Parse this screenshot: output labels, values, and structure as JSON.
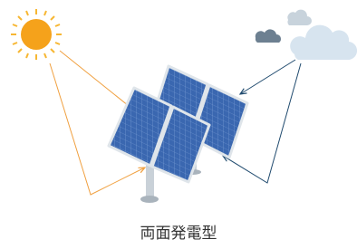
{
  "caption": "両面発電型"
}
